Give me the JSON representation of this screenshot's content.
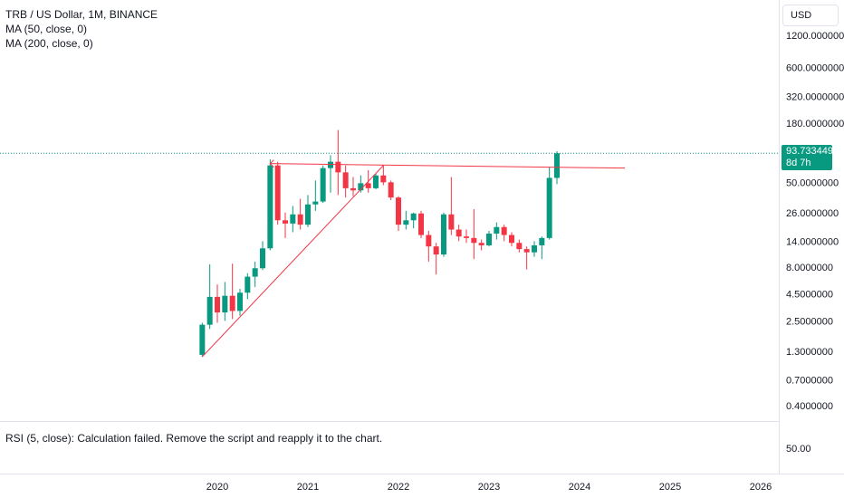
{
  "legend": {
    "symbol": "TRB / US Dollar, 1M, BINANCE",
    "ma1": "MA (50, close, 0)",
    "ma2": "MA (200, close, 0)"
  },
  "currency": "USD",
  "price_tag": {
    "value": "93.7334493",
    "countdown": "8d 7h"
  },
  "rsi": {
    "label": "RSI (5, close): Calculation failed. Remove the script and reapply it to the chart.",
    "tick": "50.00"
  },
  "colors": {
    "up": "#089981",
    "down": "#f23645",
    "line": "#f23645",
    "text": "#131722",
    "dotted": "#089981"
  },
  "chart_data": {
    "type": "candlestick",
    "title": "TRB / US Dollar, 1M, BINANCE",
    "y_scale": "log",
    "y_ticks": [
      "1200.0000000",
      "600.0000000",
      "320.0000000",
      "180.0000000",
      "50.0000000",
      "26.0000000",
      "14.0000000",
      "8.0000000",
      "4.5000000",
      "2.5000000",
      "1.3000000",
      "0.7000000",
      "0.4000000"
    ],
    "x_ticks": [
      "2020",
      "2021",
      "2022",
      "2023",
      "2024",
      "2025",
      "2026"
    ],
    "last_price": 93.7334493,
    "candles": [
      {
        "date": "2019-11",
        "o": 1.2,
        "h": 2.4,
        "l": 1.15,
        "c": 2.3
      },
      {
        "date": "2019-12",
        "o": 2.3,
        "h": 8.5,
        "l": 2.1,
        "c": 4.2
      },
      {
        "date": "2020-01",
        "o": 4.2,
        "h": 5.5,
        "l": 2.4,
        "c": 3.0
      },
      {
        "date": "2020-02",
        "o": 3.0,
        "h": 5.8,
        "l": 2.5,
        "c": 4.3
      },
      {
        "date": "2020-03",
        "o": 4.3,
        "h": 8.6,
        "l": 2.6,
        "c": 3.1
      },
      {
        "date": "2020-04",
        "o": 3.1,
        "h": 5.0,
        "l": 2.8,
        "c": 4.6
      },
      {
        "date": "2020-05",
        "o": 4.6,
        "h": 7.0,
        "l": 4.0,
        "c": 6.5
      },
      {
        "date": "2020-06",
        "o": 6.5,
        "h": 9.0,
        "l": 5.2,
        "c": 7.8
      },
      {
        "date": "2020-07",
        "o": 7.8,
        "h": 14.0,
        "l": 7.5,
        "c": 12.0
      },
      {
        "date": "2020-08",
        "o": 12.0,
        "h": 82.0,
        "l": 11.5,
        "c": 72.0
      },
      {
        "date": "2020-09",
        "o": 72.0,
        "h": 78.0,
        "l": 20.0,
        "c": 22.0
      },
      {
        "date": "2020-10",
        "o": 22.0,
        "h": 26.0,
        "l": 15.0,
        "c": 20.5
      },
      {
        "date": "2020-11",
        "o": 20.5,
        "h": 30.0,
        "l": 17.0,
        "c": 25.0
      },
      {
        "date": "2020-12",
        "o": 25.0,
        "h": 35.0,
        "l": 18.0,
        "c": 20.0
      },
      {
        "date": "2021-01",
        "o": 20.0,
        "h": 38.0,
        "l": 19.0,
        "c": 31.0
      },
      {
        "date": "2021-02",
        "o": 31.0,
        "h": 52.0,
        "l": 27.0,
        "c": 33.0
      },
      {
        "date": "2021-03",
        "o": 33.0,
        "h": 72.0,
        "l": 32.0,
        "c": 68.0
      },
      {
        "date": "2021-04",
        "o": 68.0,
        "h": 90.0,
        "l": 40.0,
        "c": 78.0
      },
      {
        "date": "2021-05",
        "o": 78.0,
        "h": 155.0,
        "l": 38.0,
        "c": 62.0
      },
      {
        "date": "2021-06",
        "o": 62.0,
        "h": 72.0,
        "l": 36.0,
        "c": 44.0
      },
      {
        "date": "2021-07",
        "o": 44.0,
        "h": 56.0,
        "l": 37.0,
        "c": 42.0
      },
      {
        "date": "2021-08",
        "o": 42.0,
        "h": 58.0,
        "l": 40.0,
        "c": 49.0
      },
      {
        "date": "2021-09",
        "o": 49.0,
        "h": 65.0,
        "l": 40.0,
        "c": 44.0
      },
      {
        "date": "2021-10",
        "o": 44.0,
        "h": 60.0,
        "l": 43.0,
        "c": 58.0
      },
      {
        "date": "2021-11",
        "o": 58.0,
        "h": 72.0,
        "l": 47.0,
        "c": 50.0
      },
      {
        "date": "2021-12",
        "o": 50.0,
        "h": 52.0,
        "l": 34.0,
        "c": 36.0
      },
      {
        "date": "2022-01",
        "o": 36.0,
        "h": 37.0,
        "l": 17.5,
        "c": 20.0
      },
      {
        "date": "2022-02",
        "o": 20.0,
        "h": 27.0,
        "l": 18.0,
        "c": 22.0
      },
      {
        "date": "2022-03",
        "o": 22.0,
        "h": 26.0,
        "l": 18.5,
        "c": 25.5
      },
      {
        "date": "2022-04",
        "o": 25.5,
        "h": 27.0,
        "l": 15.0,
        "c": 16.0
      },
      {
        "date": "2022-05",
        "o": 16.0,
        "h": 17.5,
        "l": 9.0,
        "c": 12.5
      },
      {
        "date": "2022-06",
        "o": 12.5,
        "h": 13.5,
        "l": 6.8,
        "c": 10.5
      },
      {
        "date": "2022-07",
        "o": 10.5,
        "h": 26.0,
        "l": 10.0,
        "c": 25.0
      },
      {
        "date": "2022-08",
        "o": 25.0,
        "h": 56.0,
        "l": 16.0,
        "c": 18.0
      },
      {
        "date": "2022-09",
        "o": 18.0,
        "h": 20.0,
        "l": 14.0,
        "c": 15.5
      },
      {
        "date": "2022-10",
        "o": 15.5,
        "h": 18.0,
        "l": 13.5,
        "c": 15.0
      },
      {
        "date": "2022-11",
        "o": 15.0,
        "h": 28.0,
        "l": 9.5,
        "c": 13.5
      },
      {
        "date": "2022-12",
        "o": 13.5,
        "h": 14.5,
        "l": 11.5,
        "c": 12.8
      },
      {
        "date": "2023-01",
        "o": 12.8,
        "h": 17.5,
        "l": 12.5,
        "c": 16.5
      },
      {
        "date": "2023-02",
        "o": 16.5,
        "h": 21.0,
        "l": 14.5,
        "c": 19.0
      },
      {
        "date": "2023-03",
        "o": 19.0,
        "h": 20.0,
        "l": 14.0,
        "c": 16.0
      },
      {
        "date": "2023-04",
        "o": 16.0,
        "h": 17.0,
        "l": 12.5,
        "c": 13.5
      },
      {
        "date": "2023-05",
        "o": 13.5,
        "h": 14.5,
        "l": 11.0,
        "c": 11.8
      },
      {
        "date": "2023-06",
        "o": 11.8,
        "h": 12.5,
        "l": 7.6,
        "c": 11.0
      },
      {
        "date": "2023-07",
        "o": 11.0,
        "h": 14.0,
        "l": 10.0,
        "c": 12.8
      },
      {
        "date": "2023-08",
        "o": 12.8,
        "h": 15.5,
        "l": 9.5,
        "c": 15.0
      },
      {
        "date": "2023-09",
        "o": 15.0,
        "h": 70.0,
        "l": 14.5,
        "c": 55.0
      },
      {
        "date": "2023-10",
        "o": 55.0,
        "h": 98.0,
        "l": 48.0,
        "c": 93.7334493
      }
    ],
    "trendlines": [
      {
        "from": {
          "date": "2019-11",
          "price": 1.15
        },
        "to": {
          "date": "2021-11",
          "price": 72.0
        }
      },
      {
        "from": {
          "date": "2020-08",
          "price": 75.0
        },
        "to": {
          "date": "2024-07",
          "price": 68.0
        }
      }
    ]
  }
}
